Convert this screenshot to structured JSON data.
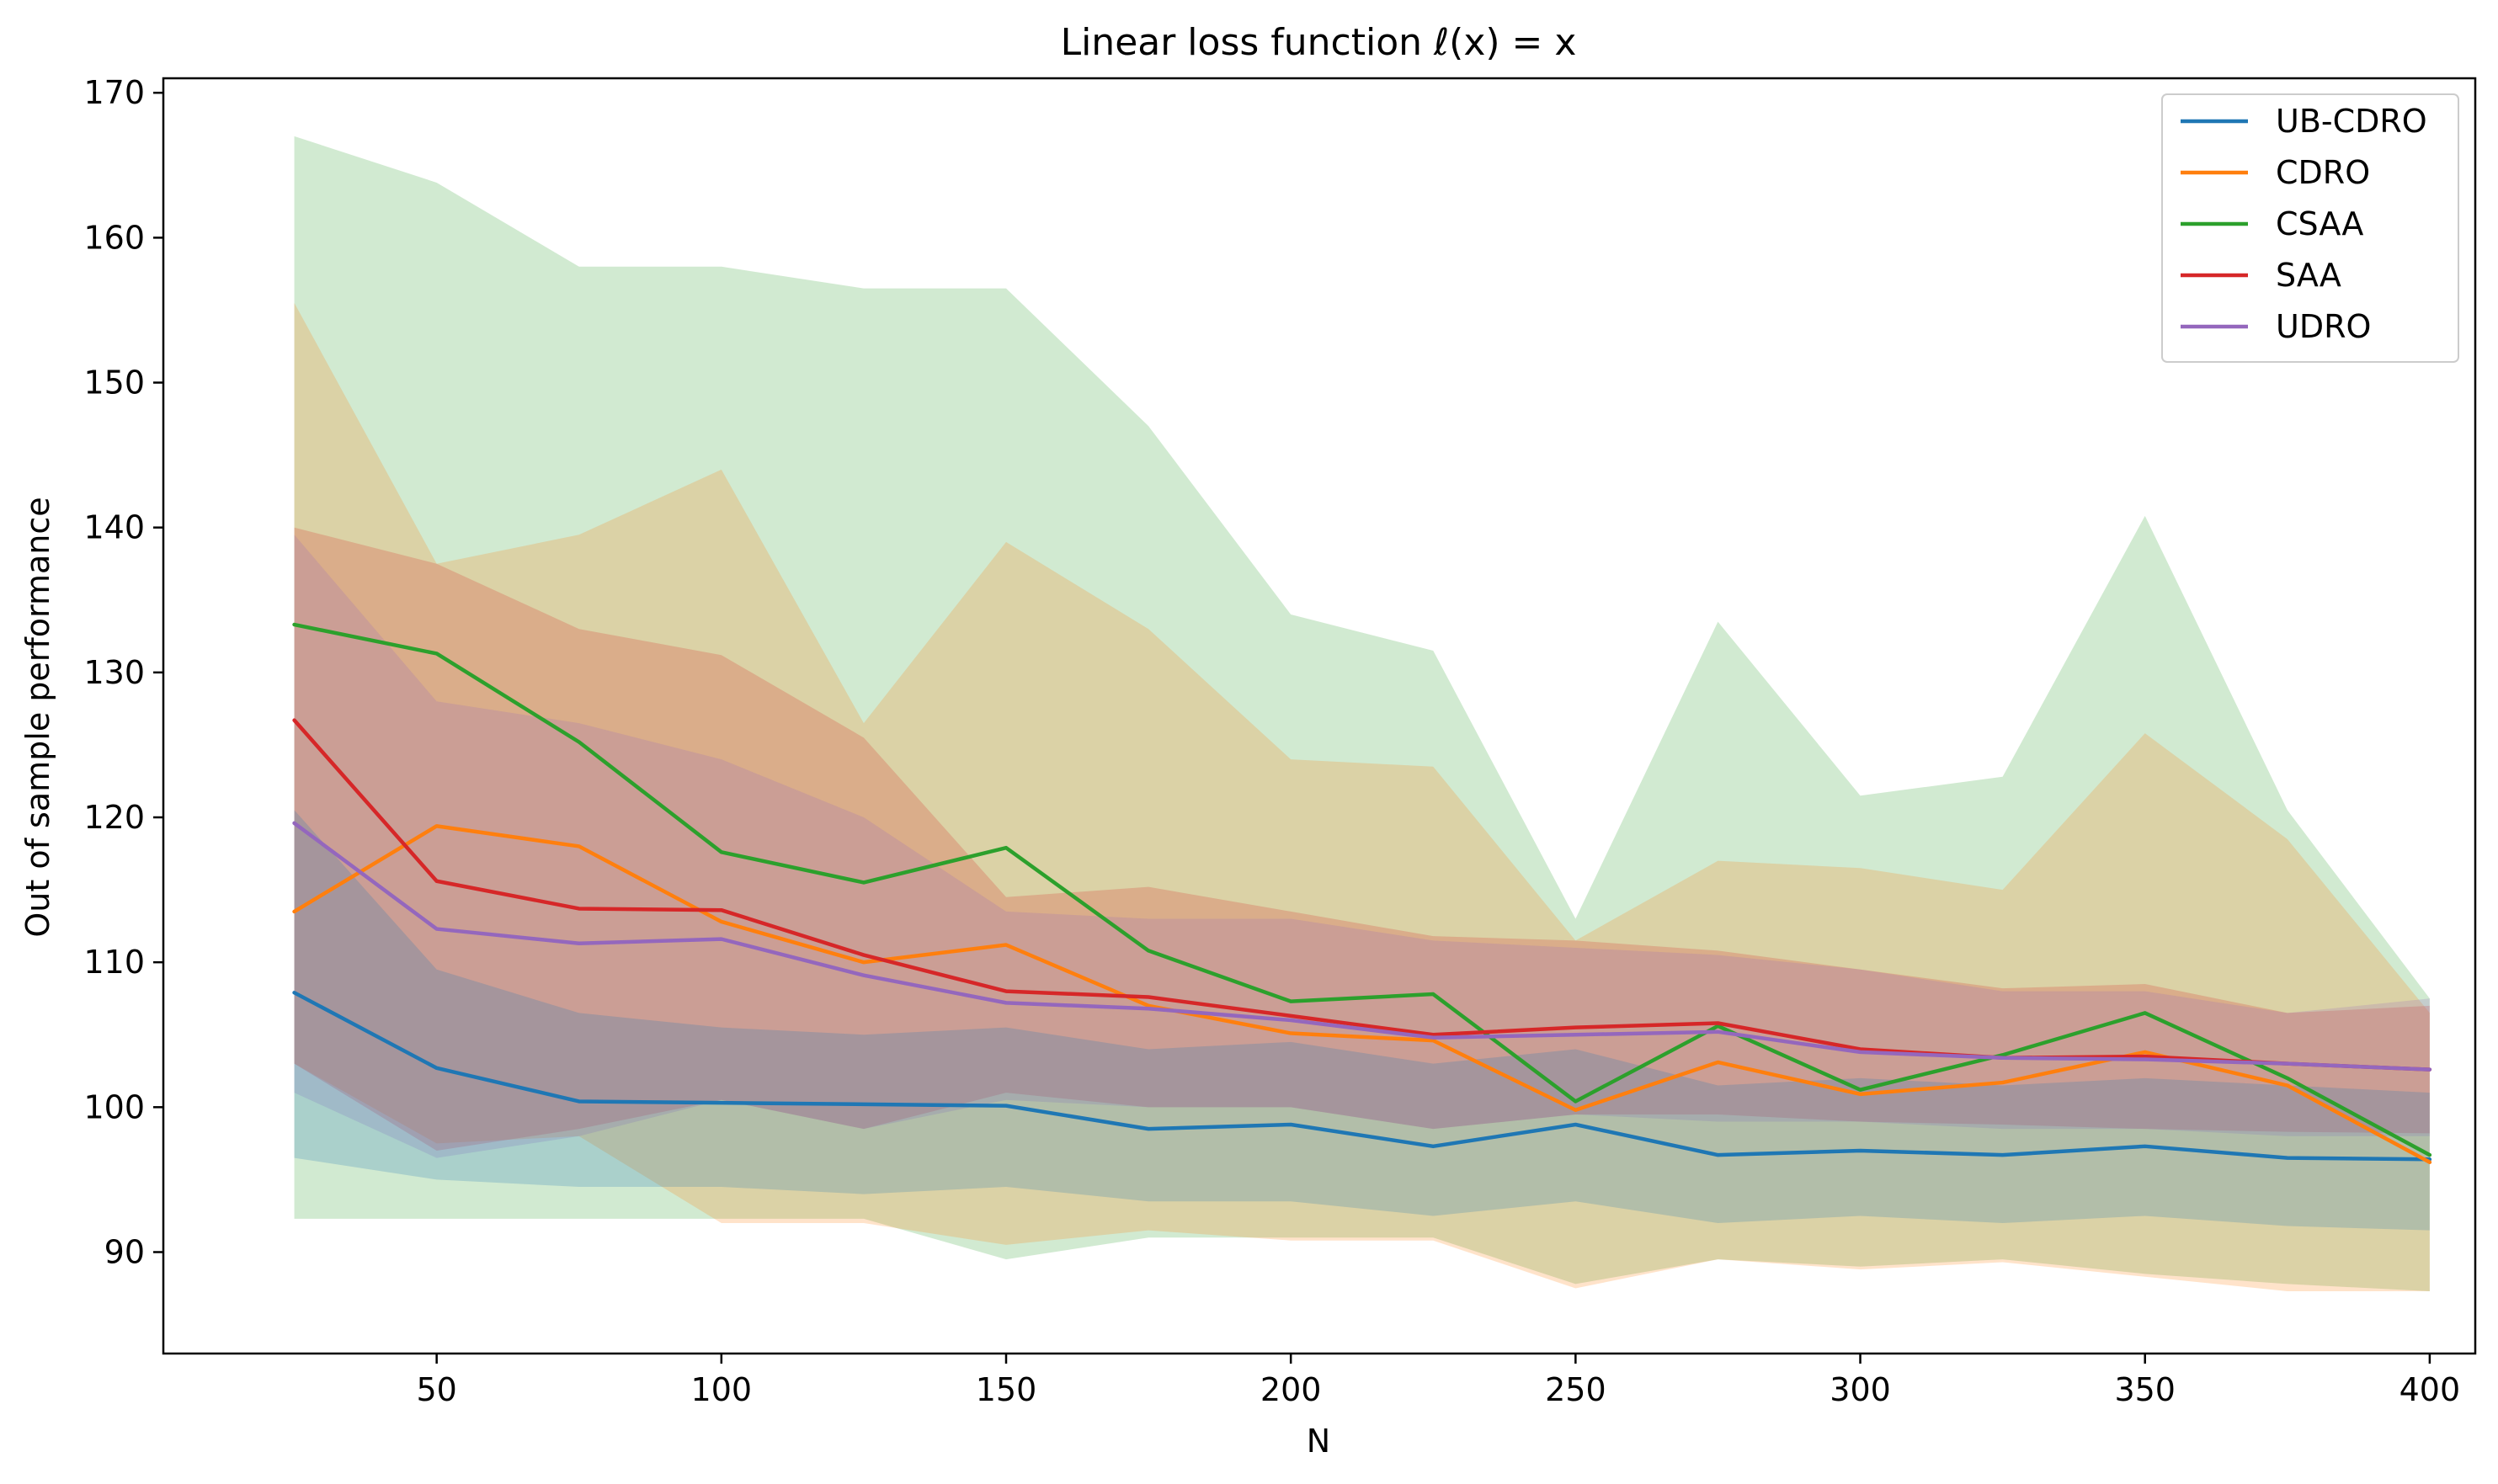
{
  "chart_data": {
    "type": "line",
    "title": "Linear loss function ℓ(x) = x",
    "xlabel": "N",
    "ylabel": "Out of sample performance",
    "xlim": [
      2,
      408
    ],
    "ylim": [
      83,
      171
    ],
    "xticks": [
      50,
      100,
      150,
      200,
      250,
      300,
      350,
      400
    ],
    "yticks": [
      90,
      100,
      110,
      120,
      130,
      140,
      150,
      160,
      170
    ],
    "legend_position": "top-right",
    "x": [
      25,
      50,
      75,
      100,
      125,
      150,
      175,
      200,
      225,
      250,
      275,
      300,
      325,
      350,
      375,
      400
    ],
    "series": [
      {
        "name": "UB-CDRO",
        "color": "#1f77b4",
        "values": [
          107.9,
          102.7,
          100.4,
          100.3,
          100.2,
          100.1,
          98.5,
          98.8,
          97.3,
          98.8,
          96.7,
          97.0,
          96.7,
          97.3,
          96.5,
          96.4
        ],
        "upper": [
          120.5,
          109.5,
          106.5,
          105.5,
          105.0,
          105.5,
          104.0,
          104.5,
          103.0,
          104.0,
          101.5,
          102.0,
          101.5,
          102.0,
          101.5,
          101.0
        ],
        "lower": [
          96.5,
          95.0,
          94.5,
          94.5,
          94.0,
          94.5,
          93.5,
          93.5,
          92.5,
          93.5,
          92.0,
          92.5,
          92.0,
          92.5,
          91.8,
          91.5
        ]
      },
      {
        "name": "CDRO",
        "color": "#ff7f0e",
        "values": [
          113.5,
          119.4,
          118.0,
          112.8,
          110.0,
          111.2,
          107.0,
          105.1,
          104.6,
          99.8,
          103.1,
          100.9,
          101.7,
          103.8,
          101.5,
          96.2
        ],
        "upper": [
          155.5,
          137.5,
          139.5,
          144.0,
          126.5,
          139.0,
          133.0,
          124.0,
          123.5,
          111.5,
          117.0,
          116.5,
          115.0,
          125.8,
          118.5,
          106.5
        ],
        "lower": [
          103.0,
          97.5,
          98.0,
          92.0,
          92.0,
          90.5,
          91.5,
          90.8,
          90.8,
          87.5,
          89.5,
          88.8,
          89.3,
          88.3,
          87.3,
          87.3
        ]
      },
      {
        "name": "CSAA",
        "color": "#2ca02c",
        "values": [
          133.3,
          131.3,
          125.2,
          117.6,
          115.5,
          117.9,
          110.8,
          107.3,
          107.8,
          100.4,
          105.6,
          101.2,
          103.6,
          106.5,
          102.0,
          96.7
        ],
        "upper": [
          167.0,
          163.8,
          158.0,
          158.0,
          156.5,
          156.5,
          147.0,
          134.0,
          131.5,
          113.0,
          133.5,
          121.5,
          122.8,
          140.8,
          120.5,
          107.5
        ],
        "lower": [
          92.3,
          92.3,
          92.3,
          92.3,
          92.3,
          89.5,
          91.0,
          91.0,
          91.0,
          87.8,
          89.5,
          89.0,
          89.5,
          88.5,
          87.8,
          87.3
        ]
      },
      {
        "name": "SAA",
        "color": "#d62728",
        "values": [
          126.7,
          115.6,
          113.7,
          113.6,
          110.5,
          108.0,
          107.6,
          106.3,
          105.0,
          105.5,
          105.8,
          104.0,
          103.4,
          103.5,
          103.0,
          102.6
        ],
        "upper": [
          140.0,
          137.5,
          133.0,
          131.2,
          125.5,
          114.5,
          115.2,
          113.5,
          111.8,
          111.5,
          110.8,
          109.5,
          108.2,
          108.5,
          106.5,
          107.0
        ],
        "lower": [
          103.0,
          97.0,
          98.5,
          100.5,
          98.5,
          101.0,
          100.0,
          100.0,
          98.5,
          99.5,
          99.5,
          99.0,
          98.8,
          98.5,
          98.3,
          98.2
        ]
      },
      {
        "name": "UDRO",
        "color": "#9467bd",
        "values": [
          119.6,
          112.3,
          111.3,
          111.6,
          109.1,
          107.2,
          106.8,
          106.0,
          104.8,
          105.0,
          105.2,
          103.8,
          103.4,
          103.3,
          103.0,
          102.6
        ],
        "upper": [
          139.5,
          128.0,
          126.5,
          124.0,
          120.0,
          113.5,
          113.0,
          113.0,
          111.5,
          111.0,
          110.5,
          109.5,
          108.0,
          108.0,
          106.5,
          107.5
        ],
        "lower": [
          101.0,
          96.5,
          98.0,
          100.5,
          98.5,
          100.5,
          100.0,
          100.0,
          98.5,
          99.5,
          99.0,
          99.0,
          98.5,
          98.5,
          98.0,
          98.0
        ]
      }
    ]
  }
}
